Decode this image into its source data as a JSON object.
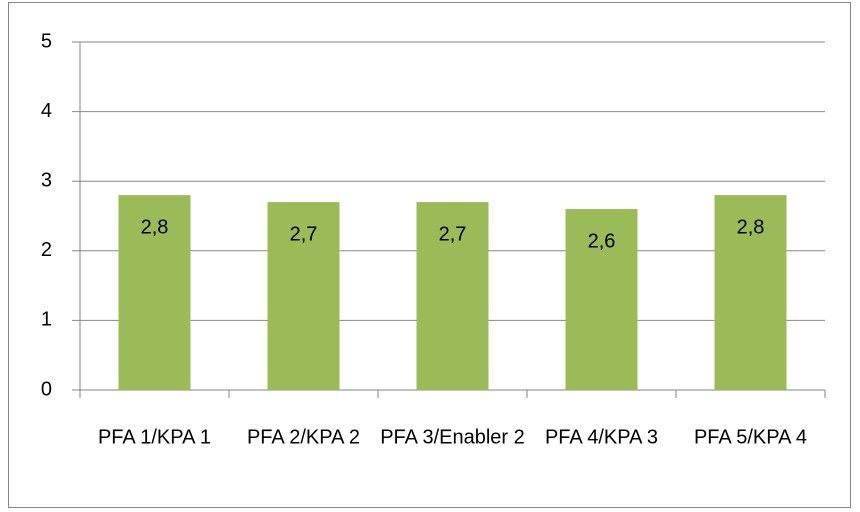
{
  "chart_data": {
    "type": "bar",
    "categories": [
      "PFA 1/KPA 1",
      "PFA 2/KPA 2",
      "PFA 3/Enabler 2",
      "PFA 4/KPA 3",
      "PFA 5/KPA 4"
    ],
    "values": [
      2.8,
      2.7,
      2.7,
      2.6,
      2.8
    ],
    "value_labels": [
      "2,8",
      "2,7",
      "2,7",
      "2,6",
      "2,8"
    ],
    "color": "#9bbb59",
    "ylim": [
      0,
      5
    ],
    "yticks": [
      0,
      1,
      2,
      3,
      4,
      5
    ],
    "grid": true
  }
}
